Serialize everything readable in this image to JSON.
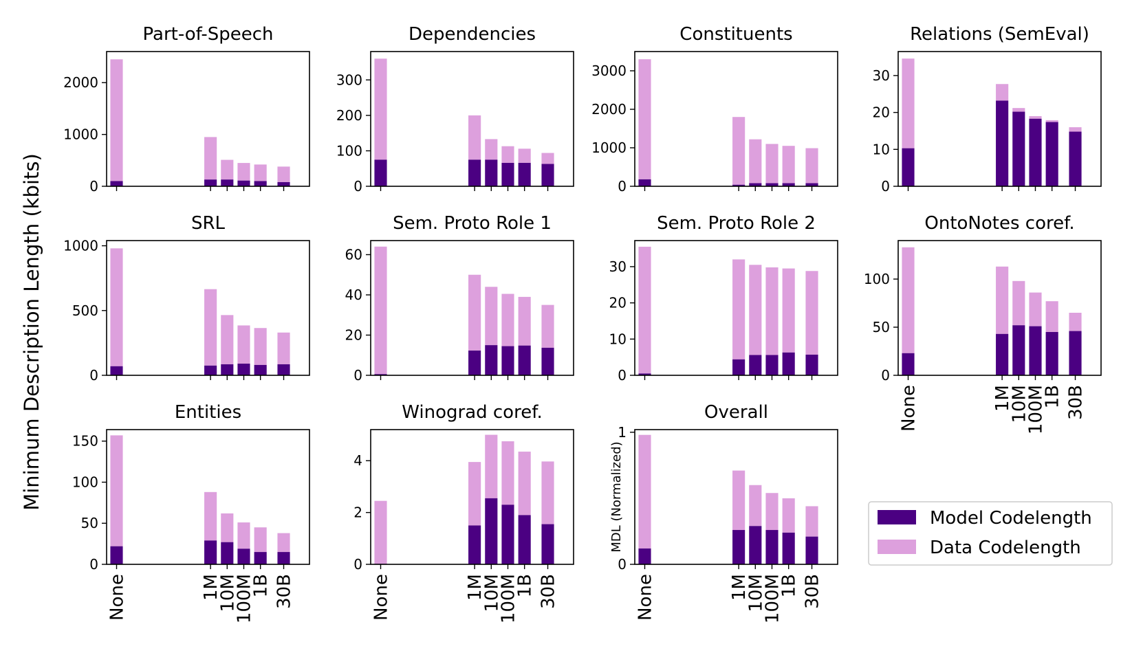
{
  "figure": {
    "ylabel_main": "Minimum Description Length (kbits)",
    "colors": {
      "model": "#4b0082",
      "data": "#dda0dd"
    },
    "legend": {
      "model_label": "Model Codelength",
      "data_label": "Data Codelength",
      "placement": "right"
    }
  },
  "chart_data": [
    {
      "type": "bar",
      "stacked": true,
      "title": "Part-of-Speech",
      "ylabel": "",
      "categories": [
        "None",
        "1M",
        "10M",
        "100M",
        "1B",
        "30B"
      ],
      "ylim": [
        0,
        2600
      ],
      "yticks": [
        0,
        1000,
        2000
      ],
      "ytick_labels": [
        "0",
        "1000",
        "2000"
      ],
      "show_xticklabels": false,
      "series": [
        {
          "name": "Model Codelength",
          "values": [
            100,
            130,
            130,
            110,
            100,
            80
          ]
        },
        {
          "name": "Data Codelength",
          "values": [
            2350,
            820,
            380,
            340,
            320,
            300
          ]
        }
      ]
    },
    {
      "type": "bar",
      "stacked": true,
      "title": "Dependencies",
      "ylabel": "",
      "categories": [
        "None",
        "1M",
        "10M",
        "100M",
        "1B",
        "30B"
      ],
      "ylim": [
        0,
        380
      ],
      "yticks": [
        0,
        100,
        200,
        300
      ],
      "ytick_labels": [
        "0",
        "100",
        "200",
        "300"
      ],
      "show_xticklabels": false,
      "series": [
        {
          "name": "Model Codelength",
          "values": [
            75,
            75,
            75,
            66,
            66,
            63
          ]
        },
        {
          "name": "Data Codelength",
          "values": [
            285,
            125,
            58,
            47,
            40,
            31
          ]
        }
      ]
    },
    {
      "type": "bar",
      "stacked": true,
      "title": "Constituents",
      "ylabel": "",
      "categories": [
        "None",
        "1M",
        "10M",
        "100M",
        "1B",
        "30B"
      ],
      "ylim": [
        0,
        3500
      ],
      "yticks": [
        0,
        1000,
        2000,
        3000
      ],
      "ytick_labels": [
        "0",
        "1000",
        "2000",
        "3000"
      ],
      "show_xticklabels": false,
      "series": [
        {
          "name": "Model Codelength",
          "values": [
            180,
            40,
            80,
            80,
            80,
            80
          ]
        },
        {
          "name": "Data Codelength",
          "values": [
            3120,
            1760,
            1140,
            1020,
            970,
            910
          ]
        }
      ]
    },
    {
      "type": "bar",
      "stacked": true,
      "title": "Relations (SemEval)",
      "ylabel": "",
      "categories": [
        "None",
        "1M",
        "10M",
        "100M",
        "1B",
        "30B"
      ],
      "ylim": [
        0,
        36.5
      ],
      "yticks": [
        0,
        10,
        20,
        30
      ],
      "ytick_labels": [
        "0",
        "10",
        "20",
        "30"
      ],
      "show_xticklabels": false,
      "series": [
        {
          "name": "Model Codelength",
          "values": [
            10.3,
            23.2,
            20.2,
            18.3,
            17.4,
            14.8
          ]
        },
        {
          "name": "Data Codelength",
          "values": [
            24.3,
            4.5,
            1.0,
            0.7,
            0.5,
            1.2
          ]
        }
      ]
    },
    {
      "type": "bar",
      "stacked": true,
      "title": "SRL",
      "ylabel": "",
      "categories": [
        "None",
        "1M",
        "10M",
        "100M",
        "1B",
        "30B"
      ],
      "ylim": [
        0,
        1040
      ],
      "yticks": [
        0,
        500,
        1000
      ],
      "ytick_labels": [
        "0",
        "500",
        "1000"
      ],
      "show_xticklabels": false,
      "series": [
        {
          "name": "Model Codelength",
          "values": [
            70,
            75,
            85,
            90,
            80,
            85
          ]
        },
        {
          "name": "Data Codelength",
          "values": [
            910,
            590,
            380,
            295,
            285,
            245
          ]
        }
      ]
    },
    {
      "type": "bar",
      "stacked": true,
      "title": "Sem. Proto Role 1",
      "ylabel": "",
      "categories": [
        "None",
        "1M",
        "10M",
        "100M",
        "1B",
        "30B"
      ],
      "ylim": [
        0,
        67
      ],
      "yticks": [
        0,
        20,
        40,
        60
      ],
      "ytick_labels": [
        "0",
        "20",
        "40",
        "60"
      ],
      "show_xticklabels": false,
      "series": [
        {
          "name": "Model Codelength",
          "values": [
            0.6,
            12.3,
            15.0,
            14.5,
            14.8,
            13.7
          ]
        },
        {
          "name": "Data Codelength",
          "values": [
            63.4,
            37.7,
            29.0,
            26.0,
            24.2,
            21.3
          ]
        }
      ]
    },
    {
      "type": "bar",
      "stacked": true,
      "title": "Sem. Proto Role 2",
      "ylabel": "",
      "categories": [
        "None",
        "1M",
        "10M",
        "100M",
        "1B",
        "30B"
      ],
      "ylim": [
        0,
        37.2
      ],
      "yticks": [
        0,
        10,
        20,
        30
      ],
      "ytick_labels": [
        "0",
        "10",
        "20",
        "30"
      ],
      "show_xticklabels": false,
      "series": [
        {
          "name": "Model Codelength",
          "values": [
            0.5,
            4.4,
            5.6,
            5.6,
            6.3,
            5.7
          ]
        },
        {
          "name": "Data Codelength",
          "values": [
            35.0,
            27.6,
            24.9,
            24.2,
            23.2,
            23.1
          ]
        }
      ]
    },
    {
      "type": "bar",
      "stacked": true,
      "title": "OntoNotes coref.",
      "ylabel": "",
      "categories": [
        "None",
        "1M",
        "10M",
        "100M",
        "1B",
        "30B"
      ],
      "ylim": [
        0,
        140
      ],
      "yticks": [
        0,
        50,
        100
      ],
      "ytick_labels": [
        "0",
        "50",
        "100"
      ],
      "show_xticklabels": true,
      "series": [
        {
          "name": "Model Codelength",
          "values": [
            23,
            43,
            52,
            51,
            45,
            46
          ]
        },
        {
          "name": "Data Codelength",
          "values": [
            110,
            70,
            46,
            35,
            32,
            19
          ]
        }
      ]
    },
    {
      "type": "bar",
      "stacked": true,
      "title": "Entities",
      "ylabel": "",
      "categories": [
        "None",
        "1M",
        "10M",
        "100M",
        "1B",
        "30B"
      ],
      "ylim": [
        0,
        164
      ],
      "yticks": [
        0,
        50,
        100,
        150
      ],
      "ytick_labels": [
        "0",
        "50",
        "100",
        "150"
      ],
      "show_xticklabels": true,
      "series": [
        {
          "name": "Model Codelength",
          "values": [
            22,
            29,
            27,
            19,
            15,
            15
          ]
        },
        {
          "name": "Data Codelength",
          "values": [
            135,
            59,
            35,
            32,
            30,
            23
          ]
        }
      ]
    },
    {
      "type": "bar",
      "stacked": true,
      "title": "Winograd coref.",
      "ylabel": "",
      "categories": [
        "None",
        "1M",
        "10M",
        "100M",
        "1B",
        "30B"
      ],
      "ylim": [
        0,
        5.2
      ],
      "yticks": [
        0,
        2,
        4
      ],
      "ytick_labels": [
        "0",
        "2",
        "4"
      ],
      "show_xticklabels": true,
      "series": [
        {
          "name": "Model Codelength",
          "values": [
            0.02,
            1.5,
            2.55,
            2.3,
            1.9,
            1.55
          ]
        },
        {
          "name": "Data Codelength",
          "values": [
            2.43,
            2.45,
            2.45,
            2.45,
            2.45,
            2.42
          ]
        }
      ]
    },
    {
      "type": "bar",
      "stacked": true,
      "title": "Overall",
      "ylabel": "MDL (Normalized)",
      "categories": [
        "None",
        "1M",
        "10M",
        "100M",
        "1B",
        "30B"
      ],
      "ylim": [
        0,
        1.02
      ],
      "yticks": [
        0,
        1
      ],
      "ytick_labels": [
        "0",
        "1"
      ],
      "show_xticklabels": true,
      "series": [
        {
          "name": "Model Codelength",
          "values": [
            0.12,
            0.26,
            0.29,
            0.26,
            0.24,
            0.21
          ]
        },
        {
          "name": "Data Codelength",
          "values": [
            0.86,
            0.45,
            0.31,
            0.28,
            0.26,
            0.23
          ]
        }
      ]
    }
  ]
}
